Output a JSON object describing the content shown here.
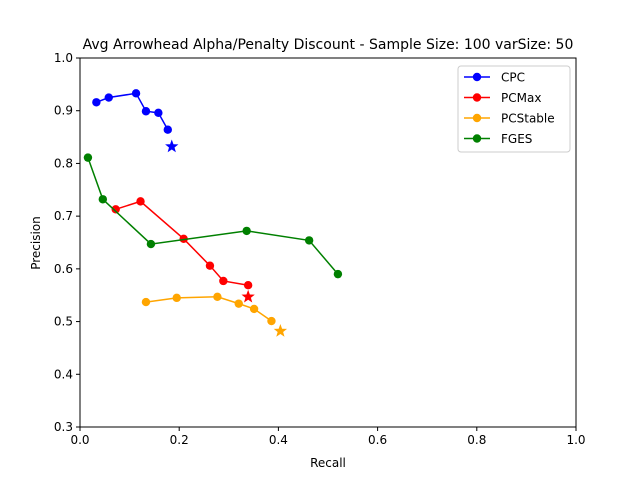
{
  "chart_data": {
    "type": "line",
    "title": "Avg Arrowhead Alpha/Penalty Discount - Sample Size: 100 varSize: 50",
    "xlabel": "Recall",
    "ylabel": "Precision",
    "xlim": [
      0.0,
      1.0
    ],
    "ylim": [
      0.3,
      1.0
    ],
    "x_ticks": [
      0.0,
      0.2,
      0.4,
      0.6,
      0.8,
      1.0
    ],
    "x_tick_labels": [
      "0.0",
      "0.2",
      "0.4",
      "0.6",
      "0.8",
      "1.0"
    ],
    "y_ticks": [
      0.3,
      0.4,
      0.5,
      0.6,
      0.7,
      0.8,
      0.9,
      1.0
    ],
    "y_tick_labels": [
      "0.3",
      "0.4",
      "0.5",
      "0.6",
      "0.7",
      "0.8",
      "0.9",
      "1.0"
    ],
    "grid": false,
    "legend_position": "top-right",
    "series": [
      {
        "name": "CPC",
        "color": "#0000ff",
        "x": [
          0.033,
          0.058,
          0.113,
          0.133,
          0.158,
          0.177
        ],
        "y": [
          0.916,
          0.925,
          0.933,
          0.899,
          0.896,
          0.864
        ],
        "star": {
          "x": 0.185,
          "y": 0.832
        }
      },
      {
        "name": "PCMax",
        "color": "#ff0000",
        "x": [
          0.072,
          0.122,
          0.209,
          0.262,
          0.289,
          0.339
        ],
        "y": [
          0.713,
          0.728,
          0.657,
          0.606,
          0.577,
          0.569
        ],
        "star": {
          "x": 0.339,
          "y": 0.547
        }
      },
      {
        "name": "PCStable",
        "color": "#ffa500",
        "x": [
          0.133,
          0.195,
          0.277,
          0.32,
          0.351,
          0.386
        ],
        "y": [
          0.537,
          0.545,
          0.547,
          0.534,
          0.524,
          0.501
        ],
        "star": {
          "x": 0.404,
          "y": 0.482
        }
      },
      {
        "name": "FGES",
        "color": "#008000",
        "x": [
          0.016,
          0.046,
          0.143,
          0.336,
          0.462,
          0.52
        ],
        "y": [
          0.811,
          0.732,
          0.647,
          0.672,
          0.654,
          0.59
        ]
      }
    ]
  }
}
